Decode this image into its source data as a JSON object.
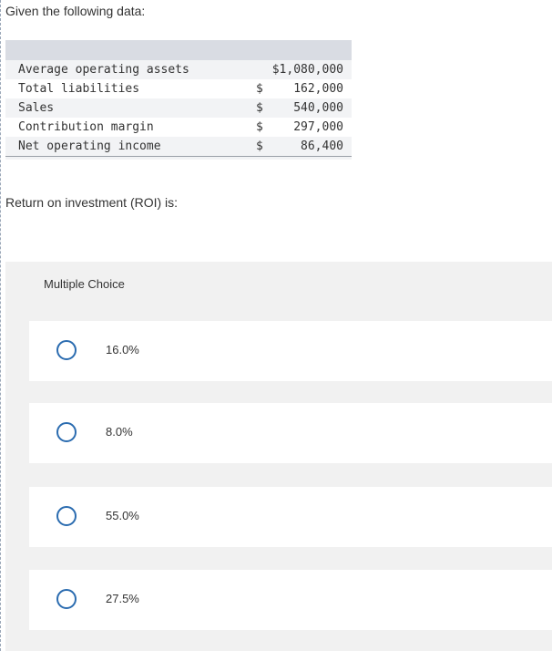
{
  "prompt": "Given the following data:",
  "data_table": {
    "rows": [
      {
        "label": "Average operating assets",
        "dollar": "$1,080,000",
        "amount": ""
      },
      {
        "label": "Total liabilities",
        "dollar": "$",
        "amount": "162,000"
      },
      {
        "label": "Sales",
        "dollar": "$",
        "amount": "540,000"
      },
      {
        "label": "Contribution margin",
        "dollar": "$",
        "amount": "297,000"
      },
      {
        "label": "Net operating income",
        "dollar": "$",
        "amount": "86,400"
      }
    ]
  },
  "question": "Return on investment (ROI) is:",
  "multiple_choice": {
    "title": "Multiple Choice",
    "options": [
      {
        "label": "16.0%"
      },
      {
        "label": "8.0%"
      },
      {
        "label": "55.0%"
      },
      {
        "label": "27.5%"
      }
    ]
  },
  "colors": {
    "radio_border": "#2b6cb0",
    "panel_bg": "#f1f1f1",
    "table_header_bg": "#d9dce3"
  }
}
